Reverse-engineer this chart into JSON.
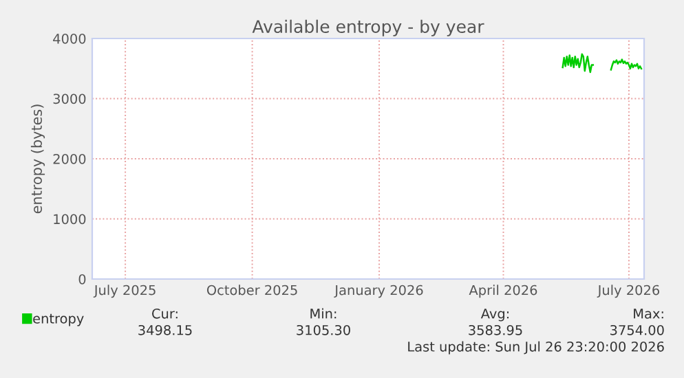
{
  "chart_data": {
    "type": "line",
    "title": "Available entropy - by year",
    "ylabel": "entropy (bytes)",
    "x": [
      "2026-05-29",
      "2026-05-30",
      "2026-05-31",
      "2026-06-01",
      "2026-06-02",
      "2026-06-03",
      "2026-06-04",
      "2026-06-05",
      "2026-06-06",
      "2026-06-07",
      "2026-06-08",
      "2026-06-09",
      "2026-06-10",
      "2026-06-11",
      "2026-06-12",
      "2026-06-13",
      "2026-06-14",
      "2026-06-15",
      "2026-06-16",
      "2026-06-17",
      "2026-06-18",
      "2026-06-19",
      "2026-06-20",
      "2026-06-27",
      "2026-07-03",
      "2026-07-04",
      "2026-07-05",
      "2026-07-06",
      "2026-07-07",
      "2026-07-08",
      "2026-07-09",
      "2026-07-10",
      "2026-07-11",
      "2026-07-12",
      "2026-07-13",
      "2026-07-14",
      "2026-07-15",
      "2026-07-16",
      "2026-07-17",
      "2026-07-18",
      "2026-07-19",
      "2026-07-20",
      "2026-07-21",
      "2026-07-22",
      "2026-07-23",
      "2026-07-24",
      "2026-07-25"
    ],
    "series": [
      {
        "name": "entropy",
        "color": "#00cc00",
        "values": [
          3520,
          3680,
          3540,
          3700,
          3560,
          3720,
          3540,
          3680,
          3520,
          3700,
          3560,
          3660,
          3520,
          3600,
          3740,
          3700,
          3460,
          3600,
          3700,
          3560,
          3440,
          3560,
          3560,
          null,
          3480,
          3560,
          3620,
          3600,
          3640,
          3580,
          3620,
          3600,
          3650,
          3590,
          3620,
          3580,
          3600,
          3560,
          3500,
          3580,
          3520,
          3560,
          3540,
          3580,
          3500,
          3540,
          3498
        ]
      }
    ],
    "xlim": [
      "2025-06-22",
      "2026-07-27"
    ],
    "xticks": [
      {
        "value": "2025-07-16",
        "label": "July 2025"
      },
      {
        "value": "2025-10-16",
        "label": "October 2025"
      },
      {
        "value": "2026-01-16",
        "label": "January 2026"
      },
      {
        "value": "2026-04-16",
        "label": "April 2026"
      },
      {
        "value": "2026-07-16",
        "label": "July 2026"
      }
    ],
    "ylim": [
      0,
      4000
    ],
    "yticks": [
      0,
      1000,
      2000,
      3000,
      4000
    ],
    "grid": true,
    "legend": "bottom left",
    "marker": "none",
    "line_style": "solid",
    "annotations": [
      "Cur:",
      "Min:",
      "Avg:",
      "Max:",
      "3498.15",
      "3105.30",
      "3583.95",
      "3754.00",
      "Last update: Sun Jul 26 23:20:00 2026"
    ]
  }
}
